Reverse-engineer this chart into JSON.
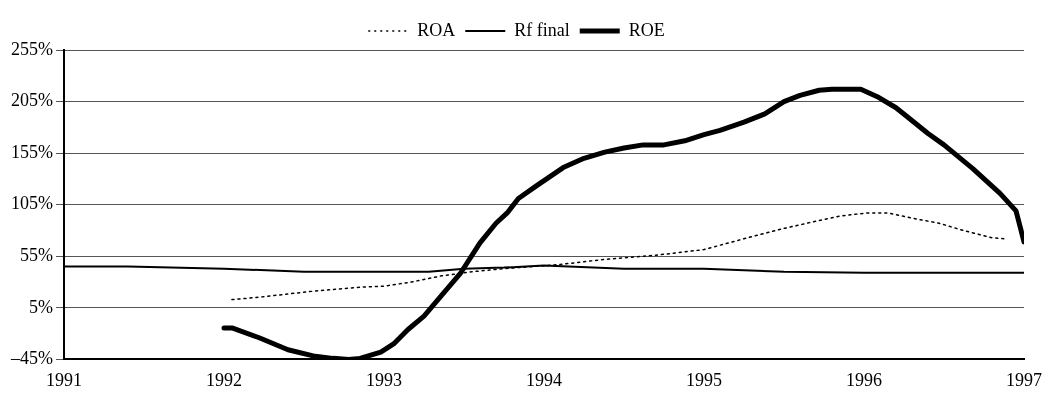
{
  "chart_data": {
    "type": "line",
    "legend": "top",
    "grid": "y",
    "marker": "none",
    "xlim": [
      1991,
      1997
    ],
    "xticks": [
      1991,
      1992,
      1993,
      1994,
      1995,
      1996,
      1997
    ],
    "ylim": [
      -45,
      255
    ],
    "yticks": [
      {
        "value": -45,
        "label": "–45%"
      },
      {
        "value": 5,
        "label": "5%"
      },
      {
        "value": 55,
        "label": "55%"
      },
      {
        "value": 105,
        "label": "105%"
      },
      {
        "value": 155,
        "label": "155%"
      },
      {
        "value": 205,
        "label": "205%"
      },
      {
        "value": 255,
        "label": "255%"
      }
    ],
    "series": [
      {
        "name": "ROA",
        "color": "#000000",
        "line_style": "dotted",
        "x": [
          1992.05,
          1992.2,
          1992.55,
          1992.85,
          1993.0,
          1993.17,
          1993.36,
          1993.55,
          1993.75,
          1994.1,
          1994.38,
          1994.7,
          1995.0,
          1995.25,
          1995.5,
          1995.7,
          1995.85,
          1996.02,
          1996.15,
          1996.3,
          1996.47,
          1996.62,
          1996.8,
          1996.88
        ],
        "values": [
          13,
          15,
          21,
          25,
          26,
          30,
          36,
          40,
          43,
          47,
          52,
          56,
          61.5,
          72,
          82,
          89,
          94,
          97,
          97,
          92,
          87,
          80,
          73,
          72
        ]
      },
      {
        "name": "Rf final",
        "color": "#000000",
        "line_style": "solid",
        "x": [
          1991,
          1991.4,
          1992,
          1992.5,
          1993,
          1993.28,
          1993.5,
          1993.75,
          1994,
          1994.5,
          1995,
          1995.5,
          1996,
          1997
        ],
        "values": [
          45,
          45,
          43,
          40,
          40,
          40,
          43,
          44,
          46,
          43,
          43,
          40,
          39,
          39
        ]
      },
      {
        "name": "ROE",
        "color": "#000000",
        "line_style": "solid",
        "x": [
          1992.0,
          1992.05,
          1992.22,
          1992.4,
          1992.57,
          1992.68,
          1992.78,
          1992.85,
          1992.98,
          1993.06,
          1993.15,
          1993.25,
          1993.36,
          1993.48,
          1993.6,
          1993.7,
          1993.77,
          1993.84,
          1993.95,
          1994.12,
          1994.25,
          1994.38,
          1994.5,
          1994.62,
          1994.75,
          1994.88,
          1995.0,
          1995.1,
          1995.25,
          1995.38,
          1995.5,
          1995.6,
          1995.72,
          1995.8,
          1995.98,
          1996.08,
          1996.2,
          1996.28,
          1996.4,
          1996.5,
          1996.68,
          1996.85,
          1996.95,
          1997.0
        ],
        "values": [
          -14.5,
          -14.5,
          -24,
          -35.6,
          -42,
          -44,
          -45,
          -44,
          -38,
          -30,
          -16,
          -3,
          17,
          39,
          68,
          87,
          97,
          111,
          123,
          141,
          150,
          156,
          160,
          163,
          163,
          167,
          173,
          177,
          185,
          193,
          205,
          211,
          216,
          217,
          217,
          210,
          199,
          189,
          174,
          163,
          140,
          116,
          99,
          69
        ]
      }
    ]
  }
}
